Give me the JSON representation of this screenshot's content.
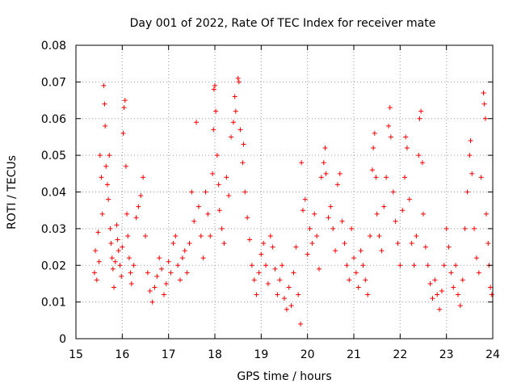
{
  "chart_data": {
    "type": "scatter",
    "title": "Day 001 of 2022, Rate Of TEC Index for receiver mate",
    "xlabel": "GPS time / hours",
    "ylabel": "ROTI / TECUs",
    "xlim": [
      15,
      24
    ],
    "ylim": [
      0,
      0.08
    ],
    "xticks": [
      "15",
      "16",
      "17",
      "18",
      "19",
      "20",
      "21",
      "22",
      "23",
      "24"
    ],
    "yticks": [
      "0",
      "0.01",
      "0.02",
      "0.03",
      "0.04",
      "0.05",
      "0.06",
      "0.07",
      "0.08"
    ],
    "xtick_values": [
      15,
      16,
      17,
      18,
      19,
      20,
      21,
      22,
      23,
      24
    ],
    "ytick_values": [
      0,
      0.01,
      0.02,
      0.03,
      0.04,
      0.05,
      0.06,
      0.07,
      0.08
    ],
    "grid": true,
    "marker": "+",
    "color": "#ff0000",
    "series": [
      {
        "name": "ROTI",
        "points": [
          [
            15.4,
            0.018
          ],
          [
            15.42,
            0.024
          ],
          [
            15.45,
            0.016
          ],
          [
            15.48,
            0.029
          ],
          [
            15.5,
            0.021
          ],
          [
            15.52,
            0.05
          ],
          [
            15.55,
            0.044
          ],
          [
            15.57,
            0.034
          ],
          [
            15.6,
            0.069
          ],
          [
            15.62,
            0.064
          ],
          [
            15.63,
            0.058
          ],
          [
            15.65,
            0.047
          ],
          [
            15.68,
            0.042
          ],
          [
            15.7,
            0.038
          ],
          [
            15.72,
            0.05
          ],
          [
            15.74,
            0.03
          ],
          [
            15.76,
            0.026
          ],
          [
            15.78,
            0.022
          ],
          [
            15.8,
            0.019
          ],
          [
            15.82,
            0.014
          ],
          [
            15.85,
            0.021
          ],
          [
            15.88,
            0.031
          ],
          [
            15.9,
            0.027
          ],
          [
            15.92,
            0.024
          ],
          [
            15.95,
            0.02
          ],
          [
            15.98,
            0.017
          ],
          [
            16.0,
            0.025
          ],
          [
            16.02,
            0.056
          ],
          [
            16.04,
            0.063
          ],
          [
            16.06,
            0.065
          ],
          [
            16.08,
            0.047
          ],
          [
            16.1,
            0.034
          ],
          [
            16.12,
            0.028
          ],
          [
            16.15,
            0.022
          ],
          [
            16.18,
            0.018
          ],
          [
            16.2,
            0.015
          ],
          [
            16.25,
            0.02
          ],
          [
            16.3,
            0.033
          ],
          [
            16.35,
            0.036
          ],
          [
            16.4,
            0.039
          ],
          [
            16.45,
            0.044
          ],
          [
            16.5,
            0.028
          ],
          [
            16.55,
            0.018
          ],
          [
            16.6,
            0.013
          ],
          [
            16.65,
            0.01
          ],
          [
            16.7,
            0.014
          ],
          [
            16.75,
            0.017
          ],
          [
            16.8,
            0.022
          ],
          [
            16.85,
            0.019
          ],
          [
            16.9,
            0.012
          ],
          [
            16.95,
            0.015
          ],
          [
            17.0,
            0.021
          ],
          [
            17.05,
            0.018
          ],
          [
            17.1,
            0.026
          ],
          [
            17.15,
            0.028
          ],
          [
            17.2,
            0.02
          ],
          [
            17.25,
            0.016
          ],
          [
            17.3,
            0.022
          ],
          [
            17.35,
            0.024
          ],
          [
            17.4,
            0.018
          ],
          [
            17.45,
            0.026
          ],
          [
            17.5,
            0.04
          ],
          [
            17.55,
            0.032
          ],
          [
            17.6,
            0.059
          ],
          [
            17.65,
            0.036
          ],
          [
            17.7,
            0.028
          ],
          [
            17.75,
            0.022
          ],
          [
            17.8,
            0.04
          ],
          [
            17.85,
            0.034
          ],
          [
            17.9,
            0.028
          ],
          [
            17.95,
            0.045
          ],
          [
            17.97,
            0.057
          ],
          [
            17.98,
            0.068
          ],
          [
            18.0,
            0.069
          ],
          [
            18.02,
            0.062
          ],
          [
            18.05,
            0.05
          ],
          [
            18.08,
            0.042
          ],
          [
            18.1,
            0.035
          ],
          [
            18.15,
            0.03
          ],
          [
            18.2,
            0.026
          ],
          [
            18.25,
            0.044
          ],
          [
            18.3,
            0.039
          ],
          [
            18.35,
            0.055
          ],
          [
            18.4,
            0.059
          ],
          [
            18.43,
            0.066
          ],
          [
            18.45,
            0.062
          ],
          [
            18.5,
            0.071
          ],
          [
            18.52,
            0.07
          ],
          [
            18.55,
            0.057
          ],
          [
            18.6,
            0.048
          ],
          [
            18.62,
            0.053
          ],
          [
            18.65,
            0.04
          ],
          [
            18.7,
            0.033
          ],
          [
            18.75,
            0.027
          ],
          [
            18.8,
            0.02
          ],
          [
            18.85,
            0.016
          ],
          [
            18.9,
            0.012
          ],
          [
            18.95,
            0.018
          ],
          [
            19.0,
            0.023
          ],
          [
            19.05,
            0.026
          ],
          [
            19.1,
            0.02
          ],
          [
            19.15,
            0.015
          ],
          [
            19.2,
            0.028
          ],
          [
            19.25,
            0.025
          ],
          [
            19.3,
            0.019
          ],
          [
            19.35,
            0.012
          ],
          [
            19.4,
            0.016
          ],
          [
            19.45,
            0.02
          ],
          [
            19.5,
            0.011
          ],
          [
            19.55,
            0.008
          ],
          [
            19.6,
            0.014
          ],
          [
            19.65,
            0.009
          ],
          [
            19.7,
            0.018
          ],
          [
            19.75,
            0.025
          ],
          [
            19.8,
            0.012
          ],
          [
            19.85,
            0.004
          ],
          [
            19.87,
            0.048
          ],
          [
            19.9,
            0.035
          ],
          [
            19.95,
            0.038
          ],
          [
            20.0,
            0.023
          ],
          [
            20.05,
            0.03
          ],
          [
            20.1,
            0.026
          ],
          [
            20.15,
            0.034
          ],
          [
            20.2,
            0.028
          ],
          [
            20.25,
            0.019
          ],
          [
            20.3,
            0.044
          ],
          [
            20.35,
            0.048
          ],
          [
            20.38,
            0.052
          ],
          [
            20.4,
            0.045
          ],
          [
            20.45,
            0.033
          ],
          [
            20.5,
            0.036
          ],
          [
            20.55,
            0.03
          ],
          [
            20.6,
            0.024
          ],
          [
            20.65,
            0.042
          ],
          [
            20.7,
            0.045
          ],
          [
            20.75,
            0.032
          ],
          [
            20.8,
            0.026
          ],
          [
            20.85,
            0.02
          ],
          [
            20.9,
            0.016
          ],
          [
            20.95,
            0.03
          ],
          [
            21.0,
            0.022
          ],
          [
            21.05,
            0.018
          ],
          [
            21.1,
            0.014
          ],
          [
            21.15,
            0.024
          ],
          [
            21.2,
            0.02
          ],
          [
            21.25,
            0.016
          ],
          [
            21.3,
            0.012
          ],
          [
            21.35,
            0.028
          ],
          [
            21.4,
            0.046
          ],
          [
            21.42,
            0.052
          ],
          [
            21.45,
            0.056
          ],
          [
            21.48,
            0.044
          ],
          [
            21.5,
            0.034
          ],
          [
            21.55,
            0.028
          ],
          [
            21.6,
            0.024
          ],
          [
            21.65,
            0.036
          ],
          [
            21.7,
            0.044
          ],
          [
            21.75,
            0.058
          ],
          [
            21.78,
            0.063
          ],
          [
            21.8,
            0.055
          ],
          [
            21.85,
            0.04
          ],
          [
            21.9,
            0.032
          ],
          [
            21.95,
            0.026
          ],
          [
            22.0,
            0.02
          ],
          [
            22.05,
            0.035
          ],
          [
            22.1,
            0.044
          ],
          [
            22.12,
            0.055
          ],
          [
            22.15,
            0.052
          ],
          [
            22.2,
            0.038
          ],
          [
            22.25,
            0.026
          ],
          [
            22.3,
            0.02
          ],
          [
            22.35,
            0.028
          ],
          [
            22.4,
            0.05
          ],
          [
            22.42,
            0.06
          ],
          [
            22.45,
            0.062
          ],
          [
            22.48,
            0.048
          ],
          [
            22.5,
            0.034
          ],
          [
            22.55,
            0.025
          ],
          [
            22.6,
            0.02
          ],
          [
            22.65,
            0.015
          ],
          [
            22.7,
            0.011
          ],
          [
            22.75,
            0.016
          ],
          [
            22.8,
            0.012
          ],
          [
            22.85,
            0.008
          ],
          [
            22.9,
            0.013
          ],
          [
            22.95,
            0.02
          ],
          [
            23.0,
            0.03
          ],
          [
            23.05,
            0.025
          ],
          [
            23.1,
            0.018
          ],
          [
            23.15,
            0.014
          ],
          [
            23.2,
            0.02
          ],
          [
            23.25,
            0.012
          ],
          [
            23.3,
            0.009
          ],
          [
            23.35,
            0.016
          ],
          [
            23.4,
            0.03
          ],
          [
            23.45,
            0.04
          ],
          [
            23.5,
            0.05
          ],
          [
            23.52,
            0.054
          ],
          [
            23.55,
            0.045
          ],
          [
            23.6,
            0.03
          ],
          [
            23.65,
            0.022
          ],
          [
            23.7,
            0.018
          ],
          [
            23.75,
            0.044
          ],
          [
            23.8,
            0.067
          ],
          [
            23.82,
            0.064
          ],
          [
            23.84,
            0.06
          ],
          [
            23.86,
            0.034
          ],
          [
            23.9,
            0.026
          ],
          [
            23.92,
            0.02
          ],
          [
            23.95,
            0.014
          ],
          [
            23.98,
            0.012
          ]
        ]
      }
    ]
  }
}
